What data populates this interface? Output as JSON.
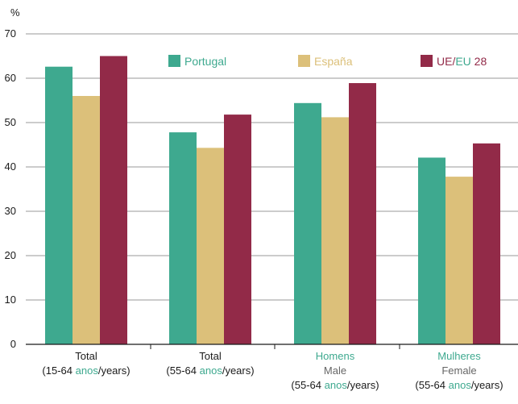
{
  "chart_data": {
    "type": "bar",
    "unit_label": "%",
    "ylim": [
      0,
      70
    ],
    "y_ticks": [
      0,
      10,
      20,
      30,
      40,
      50,
      60,
      70
    ],
    "grid": true,
    "legend_position": "top",
    "colors": {
      "Portugal": "#3ea98f",
      "España": "#dcc07a",
      "UE/EU 28": "#922a48",
      "accent_text": "#3ea98f",
      "secondary_text": "#666666",
      "axis": "#1a1a1a",
      "grid": "#9a9a9a"
    },
    "categories": [
      {
        "lines": [
          [
            {
              "t": "Total",
              "style": "main"
            }
          ],
          [
            {
              "t": "(15-64 ",
              "style": "main"
            },
            {
              "t": "anos",
              "style": "accent"
            },
            {
              "t": "/years)",
              "style": "main"
            }
          ]
        ]
      },
      {
        "lines": [
          [
            {
              "t": "Total",
              "style": "main"
            }
          ],
          [
            {
              "t": "(55-64 ",
              "style": "main"
            },
            {
              "t": "anos",
              "style": "accent"
            },
            {
              "t": "/years)",
              "style": "main"
            }
          ]
        ]
      },
      {
        "lines": [
          [
            {
              "t": "Homens",
              "style": "accent"
            }
          ],
          [
            {
              "t": "Male",
              "style": "secondary"
            }
          ],
          [
            {
              "t": "(55-64 ",
              "style": "main"
            },
            {
              "t": "anos",
              "style": "accent"
            },
            {
              "t": "/years)",
              "style": "main"
            }
          ]
        ]
      },
      {
        "lines": [
          [
            {
              "t": "Mulheres",
              "style": "accent"
            }
          ],
          [
            {
              "t": "Female",
              "style": "secondary"
            }
          ],
          [
            {
              "t": "(55-64 ",
              "style": "main"
            },
            {
              "t": "anos",
              "style": "accent"
            },
            {
              "t": "/years)",
              "style": "main"
            }
          ]
        ]
      }
    ],
    "series": [
      {
        "name": "Portugal",
        "legend_parts": [
          {
            "t": "Portugal",
            "style": "accent"
          }
        ],
        "values": [
          62.6,
          47.8,
          54.4,
          42.1
        ]
      },
      {
        "name": "España",
        "legend_parts": [
          {
            "t": "España",
            "style": "gold"
          }
        ],
        "values": [
          56.0,
          44.3,
          51.2,
          37.8
        ]
      },
      {
        "name": "UE/EU 28",
        "legend_parts": [
          {
            "t": "UE/",
            "style": "maroon"
          },
          {
            "t": "EU",
            "style": "accent"
          },
          {
            "t": " 28",
            "style": "maroon"
          }
        ],
        "values": [
          65.0,
          51.8,
          58.9,
          45.3
        ]
      }
    ]
  }
}
